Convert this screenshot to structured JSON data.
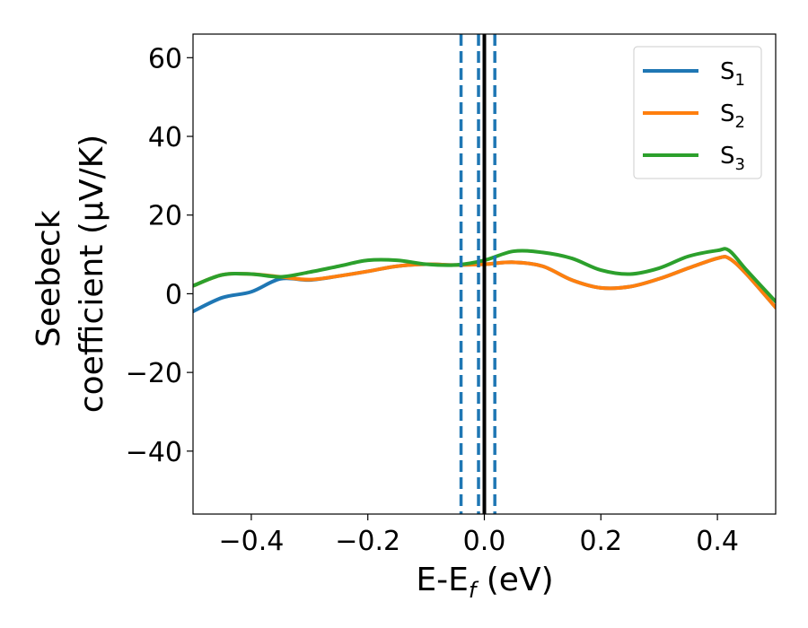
{
  "chart_data": {
    "type": "line",
    "xlabel": "E-E",
    "xlabel_sub": "f",
    "xlabel_unit": " (eV)",
    "ylabel_line1": "Seebeck",
    "ylabel_line2": "coefficient  (μV/K)",
    "xlim": [
      -0.5,
      0.5
    ],
    "ylim": [
      -56,
      66
    ],
    "xticks": [
      -0.4,
      -0.2,
      0.0,
      0.2,
      0.4
    ],
    "xtick_labels": [
      "−0.4",
      "−0.2",
      "0.0",
      "0.2",
      "0.4"
    ],
    "yticks": [
      -40,
      -20,
      0,
      20,
      40,
      60
    ],
    "ytick_labels": [
      "−40",
      "−20",
      "0",
      "20",
      "40",
      "60"
    ],
    "grid": false,
    "legend_position": "top-right",
    "vertical_lines": [
      {
        "x": 0.0,
        "style": "solid",
        "color": "#000000"
      },
      {
        "x": -0.04,
        "style": "dashed",
        "color": "#1f77b4"
      },
      {
        "x": -0.01,
        "style": "dashed",
        "color": "#1f77b4"
      },
      {
        "x": 0.018,
        "style": "dashed",
        "color": "#1f77b4"
      }
    ],
    "series": [
      {
        "name": "S",
        "sub": "1",
        "color": "#1f77b4",
        "x": [
          -0.5,
          -0.45,
          -0.4,
          -0.35,
          -0.3,
          -0.25,
          -0.2,
          -0.15,
          -0.1,
          -0.05,
          0.0,
          0.05,
          0.1,
          0.15,
          0.2,
          0.25,
          0.3,
          0.35,
          0.4,
          0.42,
          0.45,
          0.5
        ],
        "y": [
          -4.5,
          -1.0,
          0.5,
          3.8,
          3.5,
          4.5,
          5.7,
          7.0,
          7.5,
          7.3,
          7.5,
          8.0,
          7.0,
          3.5,
          1.5,
          1.8,
          3.8,
          6.5,
          9.0,
          9.0,
          5.0,
          -3.5
        ]
      },
      {
        "name": "S",
        "sub": "2",
        "color": "#ff7f0e",
        "x": [
          -0.5,
          -0.45,
          -0.4,
          -0.35,
          -0.3,
          -0.25,
          -0.2,
          -0.15,
          -0.1,
          -0.05,
          0.0,
          0.05,
          0.1,
          0.15,
          0.2,
          0.25,
          0.3,
          0.35,
          0.4,
          0.42,
          0.45,
          0.5
        ],
        "y": [
          2.0,
          4.8,
          5.0,
          4.3,
          3.6,
          4.5,
          5.7,
          7.0,
          7.5,
          7.3,
          7.5,
          8.0,
          7.0,
          3.5,
          1.5,
          1.8,
          3.8,
          6.5,
          9.0,
          9.0,
          5.0,
          -3.5
        ]
      },
      {
        "name": "S",
        "sub": "3",
        "color": "#2ca02c",
        "x": [
          -0.5,
          -0.45,
          -0.4,
          -0.35,
          -0.3,
          -0.25,
          -0.2,
          -0.15,
          -0.1,
          -0.05,
          0.0,
          0.05,
          0.1,
          0.15,
          0.2,
          0.25,
          0.3,
          0.35,
          0.4,
          0.42,
          0.45,
          0.5
        ],
        "y": [
          2.0,
          4.8,
          5.0,
          4.3,
          5.5,
          7.0,
          8.5,
          8.5,
          7.5,
          7.3,
          8.5,
          10.8,
          10.5,
          9.0,
          6.0,
          5.0,
          6.5,
          9.5,
          11.0,
          11.0,
          6.0,
          -2.0
        ]
      }
    ]
  }
}
